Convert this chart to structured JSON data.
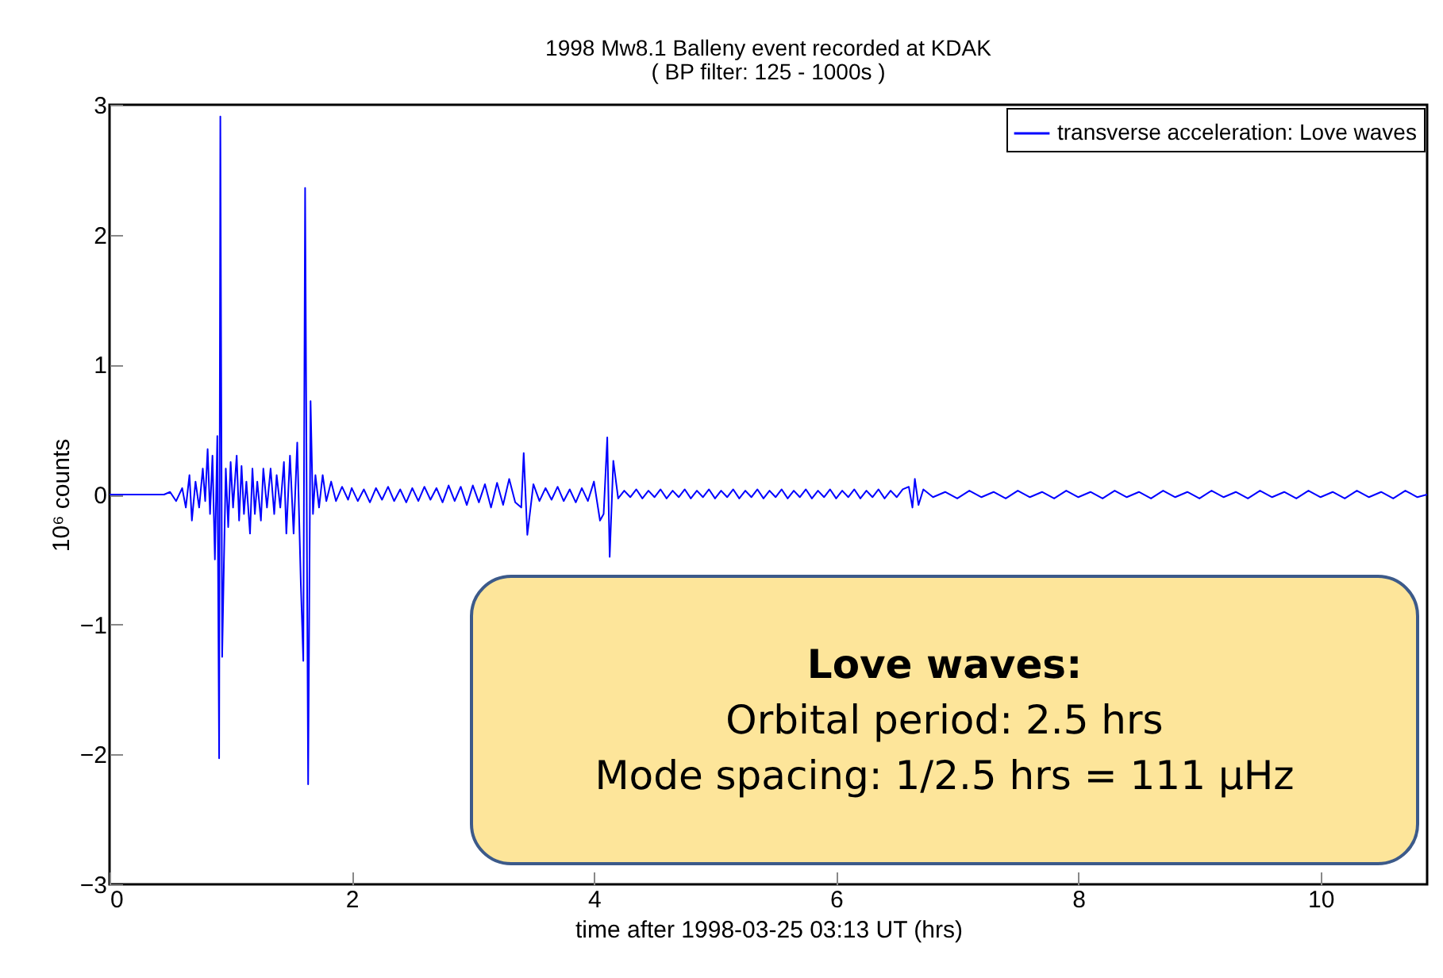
{
  "chart_data": {
    "type": "line",
    "title": "1998 Mw8.1 Balleny event recorded at KDAK",
    "subtitle": "( BP filter: 125 - 1000s )",
    "xlabel": "time after 1998-03-25 03:13 UT (hrs)",
    "ylabel": "10⁶ counts",
    "annotations": [
      "Love waves:",
      "Orbital period: 2.5 hrs",
      "Mode spacing: 1/2.5 hrs = 111 μHz"
    ],
    "xlim": [
      0,
      10.88
    ],
    "ylim": [
      -3,
      3
    ],
    "xticks": [
      0,
      2,
      4,
      6,
      8,
      10
    ],
    "yticks": [
      -3,
      -2,
      -1,
      0,
      1,
      2,
      3
    ],
    "legend": "top right",
    "line_style": "solid",
    "series": [
      {
        "name": "transverse acceleration: Love waves",
        "color": "#0000ff",
        "x": [
          0,
          0.45,
          0.5,
          0.55,
          0.6,
          0.63,
          0.66,
          0.68,
          0.71,
          0.74,
          0.77,
          0.79,
          0.81,
          0.83,
          0.85,
          0.87,
          0.89,
          0.905,
          0.915,
          0.93,
          0.945,
          0.96,
          0.98,
          1.0,
          1.02,
          1.05,
          1.07,
          1.09,
          1.11,
          1.13,
          1.16,
          1.18,
          1.2,
          1.22,
          1.25,
          1.27,
          1.3,
          1.33,
          1.36,
          1.38,
          1.41,
          1.44,
          1.46,
          1.49,
          1.52,
          1.55,
          1.58,
          1.6,
          1.615,
          1.64,
          1.66,
          1.68,
          1.7,
          1.73,
          1.76,
          1.79,
          1.83,
          1.87,
          1.92,
          1.97,
          2.0,
          2.05,
          2.1,
          2.15,
          2.2,
          2.25,
          2.3,
          2.35,
          2.4,
          2.45,
          2.5,
          2.55,
          2.6,
          2.65,
          2.7,
          2.75,
          2.8,
          2.85,
          2.9,
          2.95,
          3.0,
          3.05,
          3.1,
          3.15,
          3.2,
          3.25,
          3.3,
          3.35,
          3.4,
          3.42,
          3.45,
          3.5,
          3.55,
          3.6,
          3.65,
          3.7,
          3.75,
          3.8,
          3.85,
          3.9,
          3.95,
          4.0,
          4.05,
          4.08,
          4.11,
          4.13,
          4.16,
          4.2,
          4.25,
          4.3,
          4.35,
          4.4,
          4.45,
          4.5,
          4.55,
          4.6,
          4.65,
          4.7,
          4.75,
          4.8,
          4.85,
          4.9,
          4.95,
          5.0,
          5.05,
          5.1,
          5.15,
          5.2,
          5.25,
          5.3,
          5.35,
          5.4,
          5.45,
          5.5,
          5.55,
          5.6,
          5.65,
          5.7,
          5.75,
          5.8,
          5.85,
          5.9,
          5.95,
          6.0,
          6.05,
          6.1,
          6.15,
          6.2,
          6.25,
          6.3,
          6.35,
          6.4,
          6.45,
          6.5,
          6.55,
          6.6,
          6.63,
          6.65,
          6.68,
          6.72,
          6.8,
          6.9,
          7.0,
          7.1,
          7.2,
          7.3,
          7.4,
          7.5,
          7.6,
          7.7,
          7.8,
          7.9,
          8.0,
          8.1,
          8.2,
          8.3,
          8.4,
          8.5,
          8.6,
          8.7,
          8.8,
          8.9,
          9.0,
          9.1,
          9.2,
          9.3,
          9.4,
          9.5,
          9.6,
          9.7,
          9.8,
          9.9,
          10.0,
          10.1,
          10.2,
          10.3,
          10.4,
          10.5,
          10.6,
          10.7,
          10.8,
          10.88
        ],
        "values": [
          0,
          0,
          0.02,
          -0.05,
          0.05,
          -0.1,
          0.15,
          -0.2,
          0.1,
          -0.1,
          0.2,
          -0.05,
          0.35,
          -0.15,
          0.3,
          -0.5,
          0.45,
          -2.03,
          2.91,
          -1.25,
          -0.5,
          0.2,
          -0.25,
          0.25,
          -0.1,
          0.3,
          -0.2,
          0.22,
          -0.15,
          0.1,
          -0.3,
          0.2,
          -0.15,
          0.1,
          -0.2,
          0.2,
          -0.1,
          0.2,
          -0.15,
          0.15,
          -0.1,
          0.25,
          -0.3,
          0.3,
          -0.3,
          0.4,
          -0.7,
          -1.28,
          2.36,
          -2.23,
          0.72,
          -0.15,
          0.15,
          -0.1,
          0.15,
          -0.05,
          0.1,
          -0.05,
          0.06,
          -0.04,
          0.05,
          -0.05,
          0.04,
          -0.06,
          0.05,
          -0.04,
          0.06,
          -0.05,
          0.04,
          -0.06,
          0.05,
          -0.05,
          0.06,
          -0.04,
          0.05,
          -0.06,
          0.07,
          -0.05,
          0.06,
          -0.08,
          0.07,
          -0.06,
          0.08,
          -0.1,
          0.09,
          -0.08,
          0.12,
          -0.06,
          -0.1,
          0.32,
          -0.31,
          0.08,
          -0.05,
          0.05,
          -0.04,
          0.06,
          -0.05,
          0.04,
          -0.06,
          0.05,
          -0.05,
          0.1,
          -0.2,
          -0.15,
          0.44,
          -0.48,
          0.26,
          -0.03,
          0.03,
          -0.02,
          0.04,
          -0.03,
          0.03,
          -0.02,
          0.04,
          -0.03,
          0.03,
          -0.02,
          0.04,
          -0.03,
          0.03,
          -0.02,
          0.04,
          -0.03,
          0.03,
          -0.02,
          0.04,
          -0.03,
          0.03,
          -0.02,
          0.04,
          -0.03,
          0.03,
          -0.02,
          0.04,
          -0.03,
          0.03,
          -0.02,
          0.04,
          -0.03,
          0.03,
          -0.02,
          0.04,
          -0.03,
          0.03,
          -0.02,
          0.04,
          -0.03,
          0.03,
          -0.02,
          0.04,
          -0.03,
          0.03,
          -0.02,
          0.04,
          0.06,
          -0.1,
          0.12,
          -0.08,
          0.04,
          -0.02,
          0.02,
          -0.03,
          0.03,
          -0.02,
          0.02,
          -0.03,
          0.03,
          -0.02,
          0.02,
          -0.03,
          0.03,
          -0.02,
          0.02,
          -0.03,
          0.03,
          -0.02,
          0.02,
          -0.03,
          0.03,
          -0.02,
          0.02,
          -0.03,
          0.03,
          -0.02,
          0.02,
          -0.03,
          0.03,
          -0.02,
          0.02,
          -0.03,
          0.03,
          -0.02,
          0.02,
          -0.03,
          0.03,
          -0.02,
          0.02,
          -0.03,
          0.03,
          -0.02,
          0
        ]
      }
    ]
  }
}
